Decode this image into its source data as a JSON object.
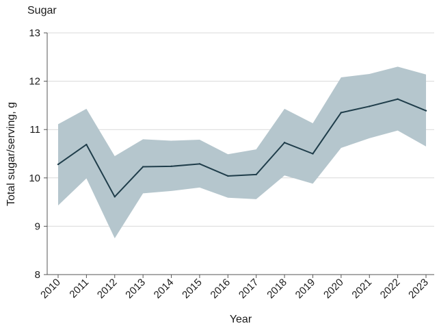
{
  "chart_data": {
    "type": "line",
    "title": "Sugar",
    "xlabel": "Year",
    "ylabel": "Total sugar/serving, g",
    "ylim": [
      8,
      13
    ],
    "yticks": [
      8,
      9,
      10,
      11,
      12,
      13
    ],
    "grid": true,
    "x": [
      "2010",
      "2011",
      "2012",
      "2013",
      "2014",
      "2015",
      "2016",
      "2017",
      "2018",
      "2019",
      "2020",
      "2021",
      "2022",
      "2023"
    ],
    "series": [
      {
        "name": "Total sugar/serving",
        "values": [
          10.28,
          10.69,
          9.61,
          10.23,
          10.24,
          10.29,
          10.04,
          10.07,
          10.73,
          10.5,
          11.35,
          11.48,
          11.63,
          11.39
        ],
        "ci_upper": [
          11.11,
          11.43,
          10.45,
          10.8,
          10.77,
          10.79,
          10.49,
          10.59,
          11.43,
          11.13,
          12.08,
          12.15,
          12.3,
          12.14
        ],
        "ci_lower": [
          9.43,
          9.99,
          8.75,
          9.68,
          9.73,
          9.8,
          9.59,
          9.56,
          10.05,
          9.88,
          10.62,
          10.82,
          10.98,
          10.65
        ]
      }
    ],
    "colors": {
      "line": "#1f3d4a",
      "band": "#b5c6cd"
    }
  }
}
